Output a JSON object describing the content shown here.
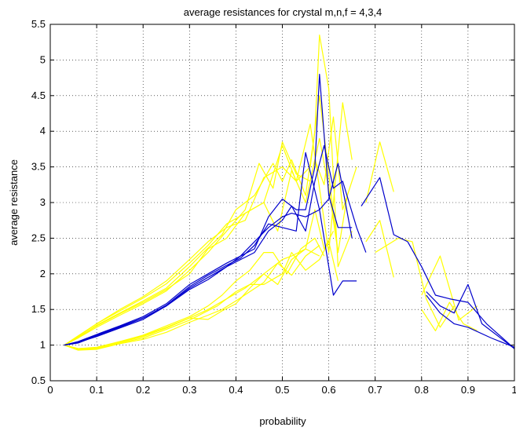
{
  "chart_data": {
    "type": "line",
    "title": "average resistances for crystal m,n,f = 4,3,4",
    "xlabel": "probability",
    "ylabel": "average resistance",
    "xlim": [
      0,
      1
    ],
    "ylim": [
      0.5,
      5.5
    ],
    "xticks": [
      0,
      0.1,
      0.2,
      0.3,
      0.4,
      0.5,
      0.6,
      0.7,
      0.8,
      0.9,
      1
    ],
    "xtick_labels": [
      "0",
      "0.1",
      "0.2",
      "0.3",
      "0.4",
      "0.5",
      "0.6",
      "0.7",
      "0.8",
      "0.9",
      "1"
    ],
    "yticks": [
      0.5,
      1,
      1.5,
      2,
      2.5,
      3,
      3.5,
      4,
      4.5,
      5,
      5.5
    ],
    "ytick_labels": [
      "0.5",
      "1",
      "1.5",
      "2",
      "2.5",
      "3",
      "3.5",
      "4",
      "4.5",
      "5",
      "5.5"
    ],
    "grid": "dotted",
    "box": true,
    "colors": {
      "yellow": "#ffff00",
      "blue": "#0000cc",
      "axis": "#000000",
      "grid": "#000000"
    },
    "series": [
      {
        "color": "yellow",
        "x": [
          0.03,
          0.06,
          0.1,
          0.15,
          0.2,
          0.25,
          0.3,
          0.33,
          0.37,
          0.4,
          0.44,
          0.48,
          0.5,
          0.52,
          0.55,
          0.57,
          0.58,
          0.6,
          0.62,
          0.65
        ],
        "y": [
          1,
          1.1,
          1.28,
          1.45,
          1.62,
          1.8,
          2.1,
          2.3,
          2.55,
          2.9,
          3.1,
          3.55,
          3.3,
          3.6,
          3.1,
          4.0,
          5.35,
          4.6,
          2.1,
          2.6
        ]
      },
      {
        "color": "yellow",
        "x": [
          0.03,
          0.06,
          0.1,
          0.15,
          0.2,
          0.25,
          0.3,
          0.34,
          0.38,
          0.42,
          0.46,
          0.5,
          0.53,
          0.56,
          0.58,
          0.6,
          0.63,
          0.65
        ],
        "y": [
          1,
          1.12,
          1.3,
          1.5,
          1.68,
          1.9,
          2.2,
          2.45,
          2.65,
          2.75,
          3.35,
          3.5,
          3.3,
          4.1,
          3.2,
          2.3,
          4.4,
          3.6
        ]
      },
      {
        "color": "yellow",
        "x": [
          0.03,
          0.06,
          0.1,
          0.15,
          0.2,
          0.25,
          0.3,
          0.34,
          0.38,
          0.42,
          0.45,
          0.48,
          0.5,
          0.53,
          0.56,
          0.58,
          0.6,
          0.62,
          0.64
        ],
        "y": [
          1,
          1.1,
          1.25,
          1.42,
          1.58,
          1.76,
          2.05,
          2.3,
          2.6,
          2.9,
          3.55,
          3.2,
          3.85,
          3.4,
          3.3,
          3.9,
          3.2,
          2.3,
          3.1
        ]
      },
      {
        "color": "yellow",
        "x": [
          0.03,
          0.06,
          0.1,
          0.15,
          0.2,
          0.25,
          0.3,
          0.34,
          0.38,
          0.42,
          0.46,
          0.49,
          0.52,
          0.55,
          0.57,
          0.59,
          0.61,
          0.63,
          0.66
        ],
        "y": [
          1,
          1.11,
          1.27,
          1.44,
          1.6,
          1.78,
          2.0,
          2.35,
          2.5,
          2.85,
          3.0,
          2.6,
          3.45,
          3.0,
          3.6,
          3.25,
          4.2,
          2.9,
          3.5
        ]
      },
      {
        "color": "yellow",
        "x": [
          0.03,
          0.06,
          0.1,
          0.15,
          0.2,
          0.25,
          0.3,
          0.34,
          0.38,
          0.42,
          0.46,
          0.5,
          0.53,
          0.56,
          0.58,
          0.6,
          0.62
        ],
        "y": [
          1,
          1.13,
          1.3,
          1.48,
          1.66,
          1.86,
          2.15,
          2.4,
          2.7,
          2.85,
          3.0,
          3.8,
          3.3,
          3.5,
          4.5,
          3.4,
          2.3
        ]
      },
      {
        "color": "yellow",
        "x": [
          0.03,
          0.06,
          0.1,
          0.15,
          0.2,
          0.25,
          0.3,
          0.34,
          0.38,
          0.42,
          0.46,
          0.5,
          0.52,
          0.55,
          0.57,
          0.59,
          0.61
        ],
        "y": [
          1,
          0.95,
          0.96,
          1.05,
          1.13,
          1.25,
          1.38,
          1.5,
          1.65,
          1.8,
          2.0,
          2.2,
          2.25,
          2.35,
          2.9,
          2.35,
          2.6
        ]
      },
      {
        "color": "yellow",
        "x": [
          0.03,
          0.06,
          0.1,
          0.15,
          0.2,
          0.25,
          0.3,
          0.33,
          0.36,
          0.4,
          0.43,
          0.46,
          0.5,
          0.52,
          0.55,
          0.58,
          0.6,
          0.62
        ],
        "y": [
          1,
          0.94,
          0.95,
          1.03,
          1.1,
          1.22,
          1.35,
          1.45,
          1.55,
          1.75,
          1.85,
          1.85,
          2.0,
          2.3,
          2.05,
          2.2,
          2.45,
          1.9
        ]
      },
      {
        "color": "yellow",
        "x": [
          0.03,
          0.06,
          0.1,
          0.15,
          0.2,
          0.25,
          0.3,
          0.34,
          0.37,
          0.4,
          0.43,
          0.46,
          0.48,
          0.51,
          0.54,
          0.57,
          0.59
        ],
        "y": [
          1,
          0.95,
          0.97,
          1.05,
          1.14,
          1.27,
          1.4,
          1.55,
          1.7,
          1.9,
          2.05,
          2.3,
          2.3,
          2.0,
          2.35,
          2.5,
          2.25
        ]
      },
      {
        "color": "yellow",
        "x": [
          0.03,
          0.06,
          0.1,
          0.15,
          0.2,
          0.25,
          0.3,
          0.34,
          0.37,
          0.4,
          0.43,
          0.46,
          0.49,
          0.52,
          0.55,
          0.58
        ],
        "y": [
          1,
          0.93,
          0.94,
          1.02,
          1.08,
          1.18,
          1.32,
          1.42,
          1.5,
          1.62,
          1.75,
          1.88,
          2.15,
          1.98,
          2.25,
          2.4
        ]
      },
      {
        "color": "yellow",
        "x": [
          0.03,
          0.06,
          0.1,
          0.15,
          0.2,
          0.25,
          0.3,
          0.34,
          0.37,
          0.4,
          0.43,
          0.46,
          0.49,
          0.52,
          0.55,
          0.58
        ],
        "y": [
          1,
          0.95,
          0.96,
          1.04,
          1.12,
          1.24,
          1.38,
          1.36,
          1.48,
          1.58,
          1.8,
          2.0,
          1.85,
          2.2,
          2.35,
          2.25
        ]
      },
      {
        "color": "yellow",
        "x": [
          0.68,
          0.71,
          0.74
        ],
        "y": [
          3.0,
          3.85,
          3.15
        ]
      },
      {
        "color": "yellow",
        "x": [
          0.68,
          0.71,
          0.74
        ],
        "y": [
          2.45,
          2.75,
          1.95
        ]
      },
      {
        "color": "yellow",
        "x": [
          0.7,
          0.75,
          0.78,
          0.81,
          0.84,
          0.87
        ],
        "y": [
          2.3,
          2.5,
          2.45,
          1.65,
          1.25,
          1.55
        ]
      },
      {
        "color": "yellow",
        "x": [
          0.8,
          0.83,
          0.86,
          0.89,
          0.92
        ],
        "y": [
          1.5,
          1.2,
          1.6,
          1.3,
          1.2
        ]
      },
      {
        "color": "yellow",
        "x": [
          0.8,
          0.84,
          0.88,
          0.92
        ],
        "y": [
          1.7,
          2.25,
          1.35,
          1.55
        ]
      },
      {
        "color": "blue",
        "x": [
          0.03,
          0.06,
          0.1,
          0.15,
          0.2,
          0.25,
          0.3,
          0.34,
          0.38,
          0.41,
          0.44,
          0.47,
          0.5,
          0.52,
          0.55,
          0.58,
          0.6,
          0.62,
          0.65
        ],
        "y": [
          1,
          1.03,
          1.13,
          1.25,
          1.38,
          1.55,
          1.8,
          1.95,
          2.1,
          2.25,
          2.45,
          2.65,
          2.8,
          2.85,
          2.8,
          2.9,
          3.05,
          3.55,
          2.5
        ]
      },
      {
        "color": "blue",
        "x": [
          0.03,
          0.06,
          0.1,
          0.15,
          0.2,
          0.25,
          0.3,
          0.34,
          0.38,
          0.41,
          0.44,
          0.47,
          0.5,
          0.53,
          0.55,
          0.57,
          0.58,
          0.6,
          0.62,
          0.65
        ],
        "y": [
          1,
          1.05,
          1.15,
          1.27,
          1.4,
          1.58,
          1.85,
          2.0,
          2.15,
          2.25,
          2.35,
          2.8,
          3.05,
          2.9,
          2.9,
          3.5,
          4.8,
          3.1,
          2.65,
          2.65
        ]
      },
      {
        "color": "blue",
        "x": [
          0.03,
          0.06,
          0.1,
          0.15,
          0.2,
          0.25,
          0.3,
          0.34,
          0.38,
          0.41,
          0.44,
          0.47,
          0.5,
          0.52,
          0.55,
          0.57,
          0.59,
          0.61,
          0.63,
          0.66,
          0.68
        ],
        "y": [
          1,
          1.04,
          1.12,
          1.24,
          1.36,
          1.55,
          1.78,
          1.92,
          2.1,
          2.2,
          2.3,
          2.6,
          2.75,
          2.95,
          2.6,
          3.3,
          3.8,
          3.2,
          3.3,
          2.65,
          2.3
        ]
      },
      {
        "color": "blue",
        "x": [
          0.03,
          0.06,
          0.1,
          0.15,
          0.2,
          0.25,
          0.3,
          0.34,
          0.38,
          0.41,
          0.44,
          0.47,
          0.5,
          0.53,
          0.55,
          0.58,
          0.61,
          0.63,
          0.66
        ],
        "y": [
          1,
          1.04,
          1.14,
          1.26,
          1.38,
          1.56,
          1.82,
          1.98,
          2.12,
          2.22,
          2.4,
          2.7,
          2.65,
          2.6,
          3.7,
          2.9,
          1.7,
          1.9,
          1.9
        ]
      },
      {
        "color": "blue",
        "x": [
          0.67,
          0.71,
          0.74,
          0.77
        ],
        "y": [
          2.95,
          3.35,
          2.55,
          2.45
        ]
      },
      {
        "color": "blue",
        "x": [
          0.77,
          0.8,
          0.83,
          0.86,
          0.9,
          0.94,
          1.0
        ],
        "y": [
          2.45,
          2.1,
          1.7,
          1.65,
          1.6,
          1.3,
          0.95
        ]
      },
      {
        "color": "blue",
        "x": [
          0.81,
          0.84,
          0.87,
          0.9,
          0.93,
          1.0
        ],
        "y": [
          1.75,
          1.55,
          1.45,
          1.85,
          1.3,
          0.95
        ]
      },
      {
        "color": "blue",
        "x": [
          0.81,
          0.84,
          0.87,
          0.9,
          0.95,
          1.0
        ],
        "y": [
          1.7,
          1.45,
          1.3,
          1.25,
          1.1,
          0.97
        ]
      }
    ]
  }
}
